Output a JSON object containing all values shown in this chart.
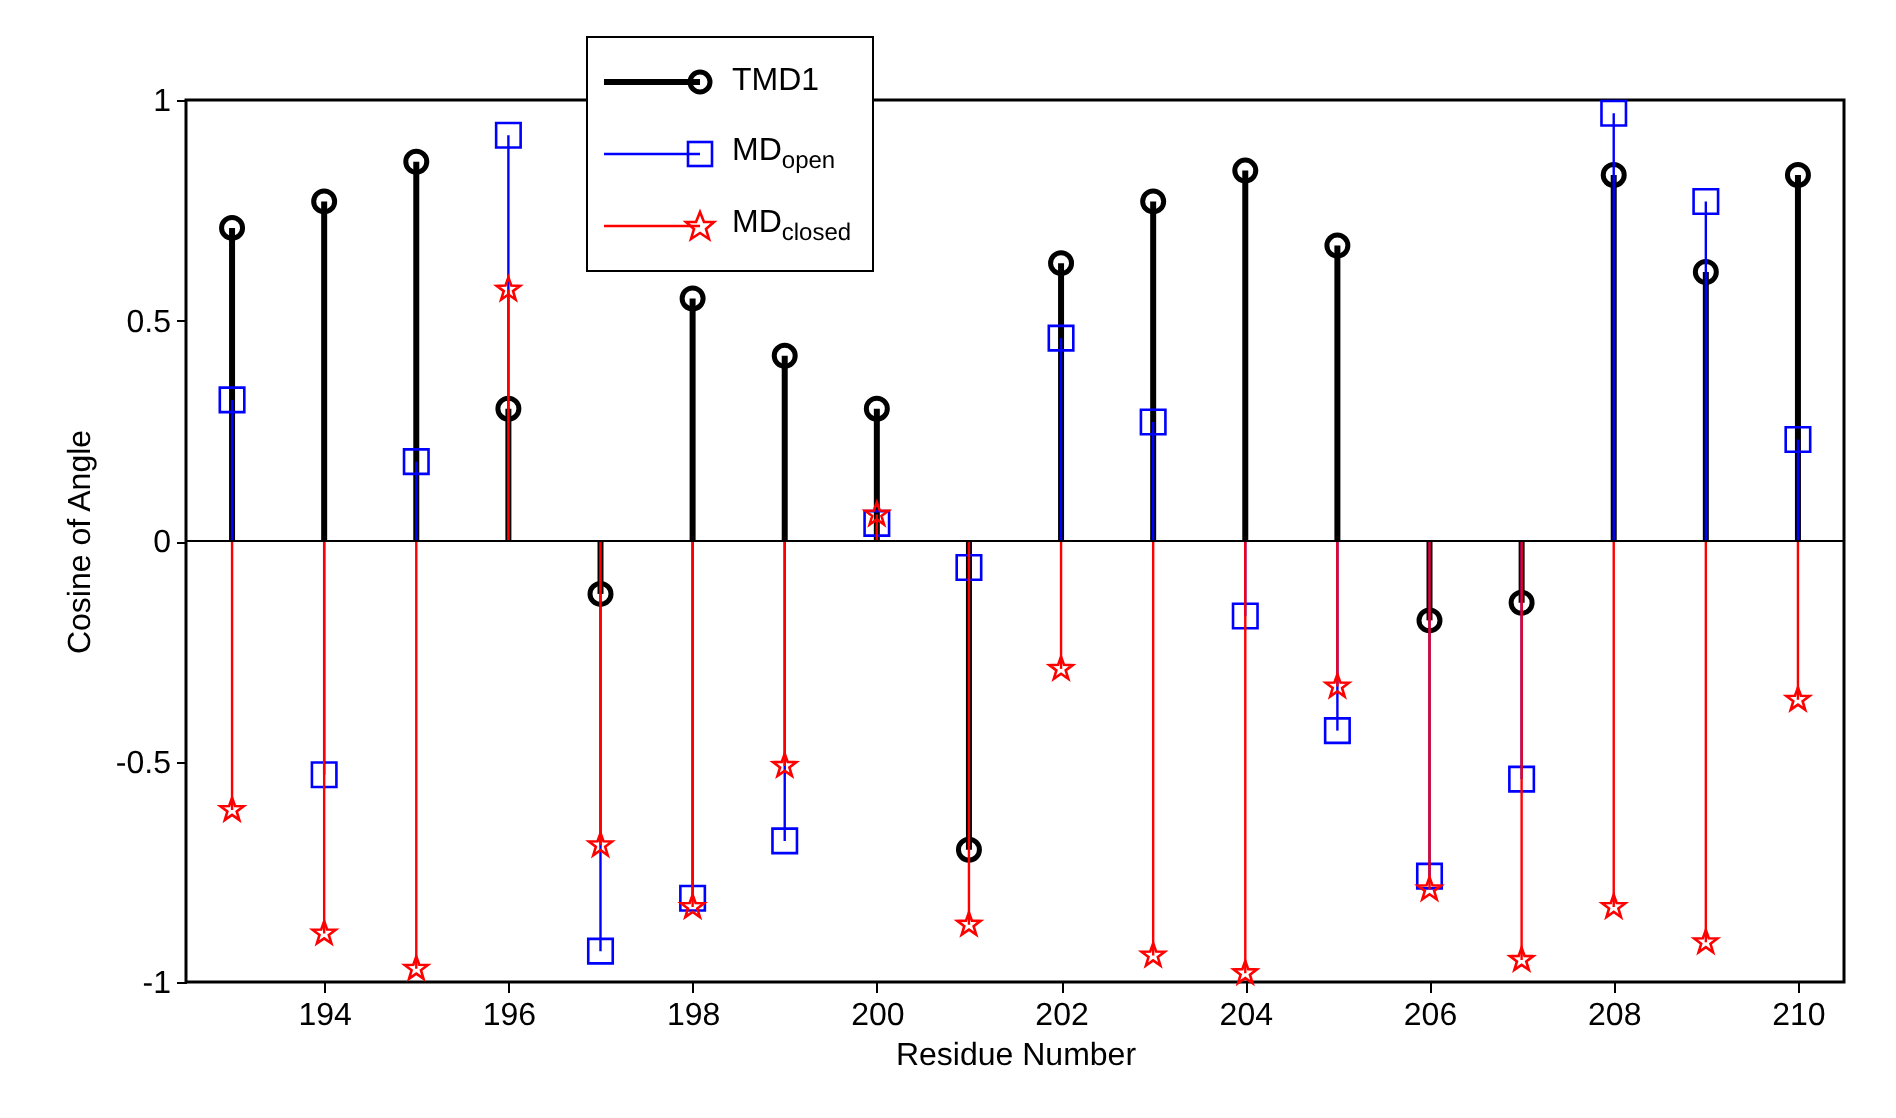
{
  "chart_data": {
    "type": "lollipop",
    "xlabel": "Residue Number",
    "ylabel": "Cosine of Angle",
    "x": [
      193,
      194,
      195,
      196,
      197,
      198,
      199,
      200,
      201,
      202,
      203,
      204,
      205,
      206,
      207,
      208,
      209,
      210
    ],
    "xlim": [
      192.5,
      210.5
    ],
    "xticks": [
      194,
      196,
      198,
      200,
      202,
      204,
      206,
      208,
      210
    ],
    "ylim": [
      -1,
      1
    ],
    "yticks": [
      -1,
      -0.5,
      0,
      0.5,
      1
    ],
    "grid": false,
    "legend": "top",
    "ref_lines": [
      {
        "axis": "y",
        "value": 0,
        "color": "#000000"
      }
    ],
    "series": [
      {
        "name": "TMD1",
        "color": "#000000",
        "marker": "circle",
        "values": [
          0.71,
          0.77,
          0.86,
          0.3,
          -0.12,
          0.55,
          0.42,
          0.3,
          -0.7,
          0.63,
          0.77,
          0.84,
          0.67,
          -0.18,
          -0.14,
          0.83,
          0.61,
          0.83
        ]
      },
      {
        "name": "MD$_{open}$",
        "color": "#0000ff",
        "marker": "square",
        "values": [
          0.32,
          -0.53,
          0.18,
          0.92,
          -0.93,
          -0.81,
          -0.68,
          0.04,
          -0.06,
          0.46,
          0.27,
          -0.17,
          -0.43,
          -0.76,
          -0.54,
          0.97,
          0.77,
          0.23
        ]
      },
      {
        "name": "MD$_{closed}$",
        "color": "#ff0000",
        "marker": "star",
        "values": [
          -0.61,
          -0.89,
          -0.97,
          0.57,
          -0.69,
          -0.83,
          -0.51,
          0.06,
          -0.87,
          -0.29,
          -0.94,
          -0.98,
          -0.33,
          -0.79,
          -0.95,
          -0.83,
          -0.91,
          -0.36
        ]
      }
    ]
  }
}
